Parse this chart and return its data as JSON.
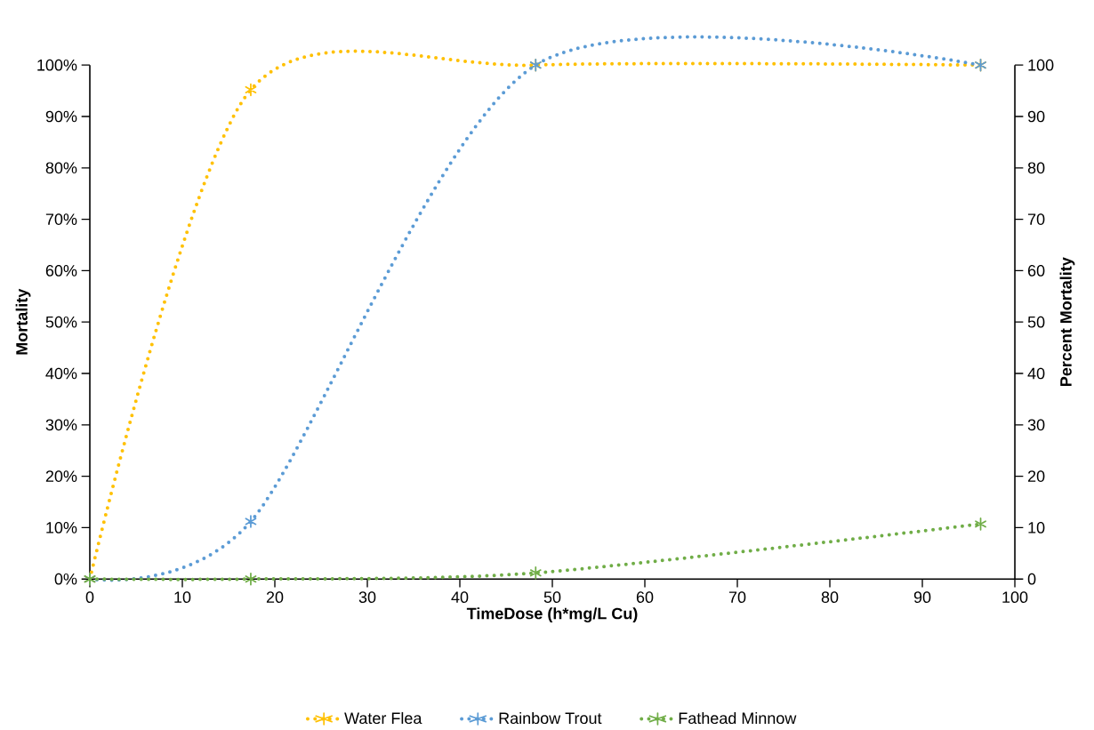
{
  "chart_data": {
    "type": "line",
    "xlabel": "TimeDose (h*mg/L Cu)",
    "ylabel": "Mortality",
    "y2label": "Percent Mortality",
    "x": [
      0,
      17.4,
      48.2,
      96.3
    ],
    "series": [
      {
        "name": "Water Flea",
        "color": "#ffc000",
        "values": [
          0,
          95.2,
          100,
          100
        ]
      },
      {
        "name": "Rainbow Trout",
        "color": "#5b9bd5",
        "values": [
          0,
          11.2,
          100,
          100
        ]
      },
      {
        "name": "Fathead Minnow",
        "color": "#70ad47",
        "values": [
          0,
          0,
          1.2,
          10.7
        ]
      }
    ],
    "xlim": [
      0,
      100
    ],
    "xticks": [
      0,
      10,
      20,
      30,
      40,
      50,
      60,
      70,
      80,
      90,
      100
    ],
    "ylim": [
      0,
      100
    ],
    "yticks": [
      {
        "value": 0,
        "label": "0%"
      },
      {
        "value": 10,
        "label": "10%"
      },
      {
        "value": 20,
        "label": "20%"
      },
      {
        "value": 30,
        "label": "30%"
      },
      {
        "value": 40,
        "label": "40%"
      },
      {
        "value": 50,
        "label": "50%"
      },
      {
        "value": 60,
        "label": "60%"
      },
      {
        "value": 70,
        "label": "70%"
      },
      {
        "value": 80,
        "label": "80%"
      },
      {
        "value": 90,
        "label": "90%"
      },
      {
        "value": 100,
        "label": "100%"
      }
    ],
    "y2lim": [
      0,
      100
    ],
    "y2ticks": [
      0,
      10,
      20,
      30,
      40,
      50,
      60,
      70,
      80,
      90,
      100
    ],
    "marker": "cross",
    "line_style": "dotted",
    "legend": "bottom",
    "grid": false
  }
}
